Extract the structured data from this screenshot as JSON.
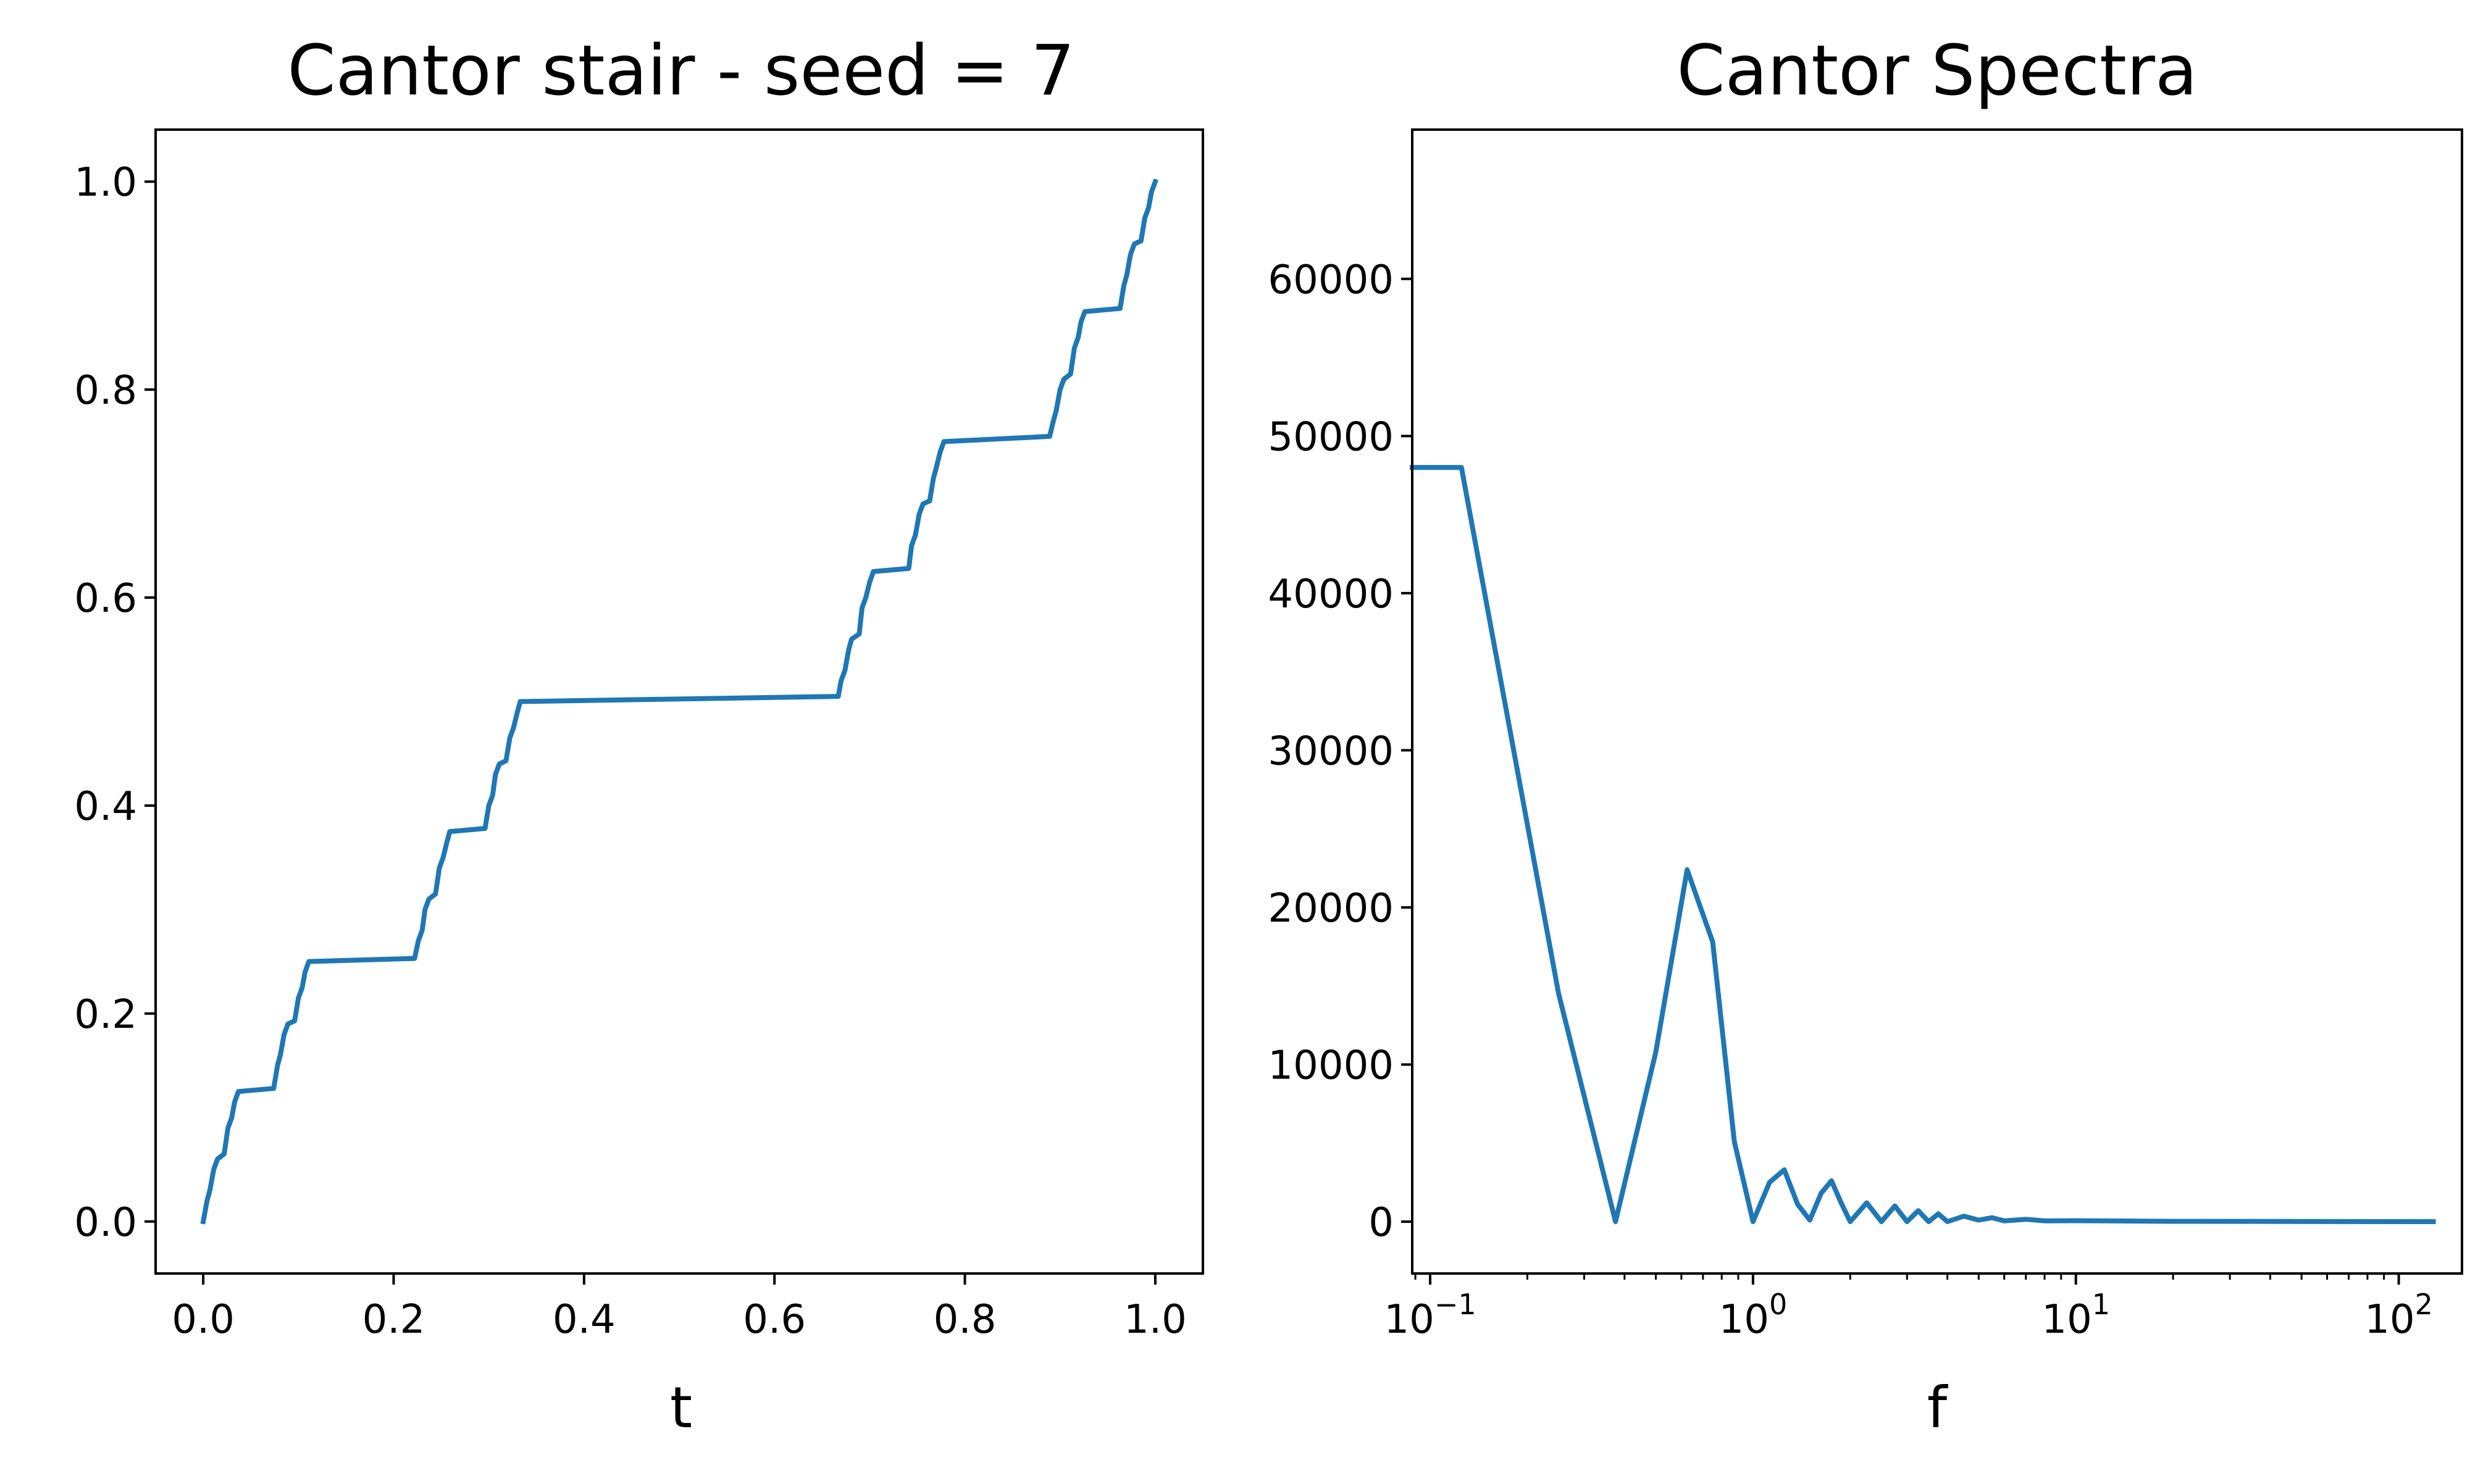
{
  "chart_data": [
    {
      "type": "line",
      "title": "Cantor stair - seed = 7",
      "xlabel": "t",
      "ylabel": "",
      "xlim": [
        -0.05,
        1.05
      ],
      "ylim": [
        -0.05,
        1.05
      ],
      "xscale": "linear",
      "x_ticks": [
        0.0,
        0.2,
        0.4,
        0.6,
        0.8,
        1.0
      ],
      "x_tick_labels": [
        "0.0",
        "0.2",
        "0.4",
        "0.6",
        "0.8",
        "1.0"
      ],
      "y_ticks": [
        0.0,
        0.2,
        0.4,
        0.6,
        0.8,
        1.0
      ],
      "y_tick_labels": [
        "0.0",
        "0.2",
        "0.4",
        "0.6",
        "0.8",
        "1.0"
      ],
      "grid": false,
      "color": "#1f77b4",
      "series": [
        {
          "x": [
            0.0,
            0.004,
            0.007,
            0.011,
            0.015,
            0.022,
            0.026,
            0.03,
            0.033,
            0.037,
            0.074,
            0.078,
            0.081,
            0.085,
            0.089,
            0.096,
            0.1,
            0.104,
            0.107,
            0.111,
            0.222,
            0.226,
            0.23,
            0.233,
            0.237,
            0.244,
            0.248,
            0.252,
            0.256,
            0.259,
            0.296,
            0.3,
            0.304,
            0.307,
            0.311,
            0.318,
            0.322,
            0.326,
            0.33,
            0.333,
            0.667,
            0.67,
            0.674,
            0.678,
            0.681,
            0.689,
            0.692,
            0.696,
            0.7,
            0.704,
            0.741,
            0.744,
            0.748,
            0.752,
            0.756,
            0.763,
            0.767,
            0.77,
            0.774,
            0.778,
            0.889,
            0.893,
            0.896,
            0.9,
            0.904,
            0.911,
            0.915,
            0.919,
            0.922,
            0.926,
            0.963,
            0.967,
            0.97,
            0.974,
            0.978,
            0.985,
            0.989,
            0.993,
            0.996,
            1.0
          ],
          "y": [
            0.0,
            0.02,
            0.03,
            0.05,
            0.06,
            0.065,
            0.09,
            0.1,
            0.115,
            0.125,
            0.128,
            0.15,
            0.16,
            0.18,
            0.19,
            0.193,
            0.215,
            0.225,
            0.24,
            0.25,
            0.253,
            0.27,
            0.28,
            0.3,
            0.31,
            0.315,
            0.34,
            0.35,
            0.365,
            0.375,
            0.378,
            0.4,
            0.41,
            0.43,
            0.44,
            0.443,
            0.465,
            0.475,
            0.49,
            0.5,
            0.505,
            0.52,
            0.53,
            0.55,
            0.56,
            0.565,
            0.59,
            0.6,
            0.615,
            0.625,
            0.628,
            0.65,
            0.66,
            0.68,
            0.69,
            0.693,
            0.715,
            0.725,
            0.74,
            0.75,
            0.755,
            0.77,
            0.78,
            0.8,
            0.81,
            0.815,
            0.84,
            0.85,
            0.865,
            0.875,
            0.878,
            0.9,
            0.91,
            0.93,
            0.94,
            0.943,
            0.965,
            0.975,
            0.99,
            1.0
          ]
        }
      ]
    },
    {
      "type": "line",
      "title": "Cantor Spectra",
      "xlabel": "f",
      "ylabel": "",
      "xlim": [
        0.088,
        157
      ],
      "ylim": [
        -3300,
        69500
      ],
      "xscale": "log",
      "x_ticks": [
        0.1,
        1,
        10,
        100
      ],
      "x_tick_labels": [
        {
          "base": "10",
          "exp": "−1"
        },
        {
          "base": "10",
          "exp": "0"
        },
        {
          "base": "10",
          "exp": "1"
        },
        {
          "base": "10",
          "exp": "2"
        }
      ],
      "y_ticks": [
        0,
        10000,
        20000,
        30000,
        40000,
        50000,
        60000
      ],
      "y_tick_labels": [
        "0",
        "10000",
        "20000",
        "30000",
        "40000",
        "50000",
        "60000"
      ],
      "grid": false,
      "color": "#1f77b4",
      "series": [
        {
          "x": [
            0.088,
            0.125,
            0.25,
            0.375,
            0.5,
            0.625,
            0.75,
            0.875,
            1.0,
            1.125,
            1.25,
            1.375,
            1.5,
            1.625,
            1.75,
            1.875,
            2.0,
            2.25,
            2.5,
            2.75,
            3.0,
            3.25,
            3.5,
            3.75,
            4.0,
            4.5,
            5.0,
            5.5,
            6.0,
            7.0,
            8.0,
            10.0,
            20.0,
            50.0,
            128.0
          ],
          "y": [
            48000,
            48000,
            14500,
            0,
            10800,
            22400,
            17800,
            5100,
            0,
            2500,
            3300,
            1100,
            100,
            1800,
            2600,
            1200,
            0,
            1200,
            0,
            1000,
            0,
            700,
            0,
            500,
            0,
            350,
            100,
            250,
            50,
            150,
            50,
            60,
            20,
            10,
            0
          ]
        }
      ]
    }
  ]
}
